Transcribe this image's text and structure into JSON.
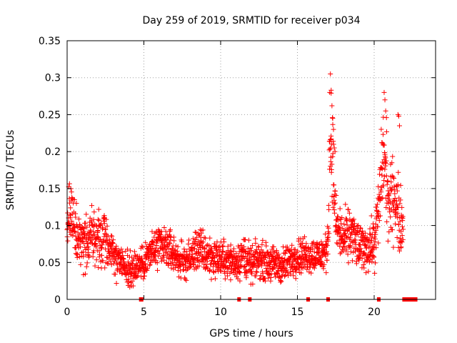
{
  "chart_data": {
    "type": "scatter",
    "title": "Day 259 of 2019, SRMTID for receiver p034",
    "xlabel": "GPS time / hours",
    "ylabel": "SRMTID / TECUs",
    "xlim": [
      0,
      24
    ],
    "ylim": [
      0,
      0.35
    ],
    "xticks": [
      0,
      5,
      10,
      15,
      20
    ],
    "xtick_labels": [
      "0",
      "5",
      "10",
      "15",
      "20"
    ],
    "yticks": [
      0,
      0.05,
      0.1,
      0.15,
      0.2,
      0.25,
      0.3,
      0.35
    ],
    "ytick_labels": [
      "0",
      "0.05",
      "0.1",
      "0.15",
      "0.2",
      "0.25",
      "0.3",
      "0.35"
    ],
    "grid": true,
    "marker": "+",
    "color": "#ff0000",
    "series": [
      {
        "name": "SRMTID",
        "profile": [
          [
            0.0,
            0.095,
            0.025
          ],
          [
            0.15,
            0.115,
            0.03
          ],
          [
            0.3,
            0.125,
            0.03
          ],
          [
            0.5,
            0.09,
            0.03
          ],
          [
            1.0,
            0.075,
            0.03
          ],
          [
            1.5,
            0.085,
            0.03
          ],
          [
            2.0,
            0.08,
            0.03
          ],
          [
            2.5,
            0.085,
            0.03
          ],
          [
            3.0,
            0.06,
            0.025
          ],
          [
            3.5,
            0.05,
            0.02
          ],
          [
            4.0,
            0.04,
            0.018
          ],
          [
            4.5,
            0.045,
            0.02
          ],
          [
            5.0,
            0.05,
            0.02
          ],
          [
            5.5,
            0.065,
            0.025
          ],
          [
            6.0,
            0.07,
            0.025
          ],
          [
            6.5,
            0.07,
            0.025
          ],
          [
            7.0,
            0.06,
            0.02
          ],
          [
            7.5,
            0.05,
            0.02
          ],
          [
            8.0,
            0.055,
            0.02
          ],
          [
            8.5,
            0.07,
            0.025
          ],
          [
            9.0,
            0.06,
            0.025
          ],
          [
            10.0,
            0.055,
            0.02
          ],
          [
            11.0,
            0.05,
            0.02
          ],
          [
            11.5,
            0.06,
            0.025
          ],
          [
            12.0,
            0.045,
            0.02
          ],
          [
            12.5,
            0.055,
            0.02
          ],
          [
            13.0,
            0.05,
            0.02
          ],
          [
            14.0,
            0.045,
            0.02
          ],
          [
            15.0,
            0.06,
            0.02
          ],
          [
            16.0,
            0.06,
            0.02
          ],
          [
            16.8,
            0.06,
            0.02
          ],
          [
            17.0,
            0.08,
            0.03
          ],
          [
            17.1,
            0.22,
            0.06
          ],
          [
            17.3,
            0.19,
            0.05
          ],
          [
            17.5,
            0.1,
            0.03
          ],
          [
            18.0,
            0.08,
            0.03
          ],
          [
            18.5,
            0.09,
            0.03
          ],
          [
            19.0,
            0.07,
            0.025
          ],
          [
            19.5,
            0.07,
            0.025
          ],
          [
            20.0,
            0.075,
            0.03
          ],
          [
            20.3,
            0.12,
            0.04
          ],
          [
            20.6,
            0.2,
            0.06
          ],
          [
            21.0,
            0.12,
            0.04
          ],
          [
            21.3,
            0.15,
            0.05
          ],
          [
            21.6,
            0.11,
            0.04
          ],
          [
            21.9,
            0.1,
            0.03
          ]
        ],
        "spikes": [
          [
            17.15,
            0.305
          ],
          [
            17.2,
            0.283
          ],
          [
            17.2,
            0.279
          ],
          [
            17.25,
            0.262
          ],
          [
            17.3,
            0.245
          ],
          [
            17.35,
            0.23
          ],
          [
            17.4,
            0.205
          ],
          [
            17.45,
            0.2
          ],
          [
            20.5,
            0.212
          ],
          [
            20.65,
            0.28
          ],
          [
            20.7,
            0.27
          ],
          [
            20.75,
            0.255
          ],
          [
            20.8,
            0.246
          ],
          [
            21.55,
            0.25
          ],
          [
            21.6,
            0.248
          ],
          [
            21.65,
            0.235
          ]
        ],
        "zero_points": [
          4.8,
          4.85,
          11.2,
          11.9,
          15.7,
          17.0,
          20.3,
          21.95,
          22.0,
          22.05,
          22.1,
          22.15,
          22.2,
          22.3,
          22.35,
          22.5,
          22.7
        ]
      }
    ]
  }
}
